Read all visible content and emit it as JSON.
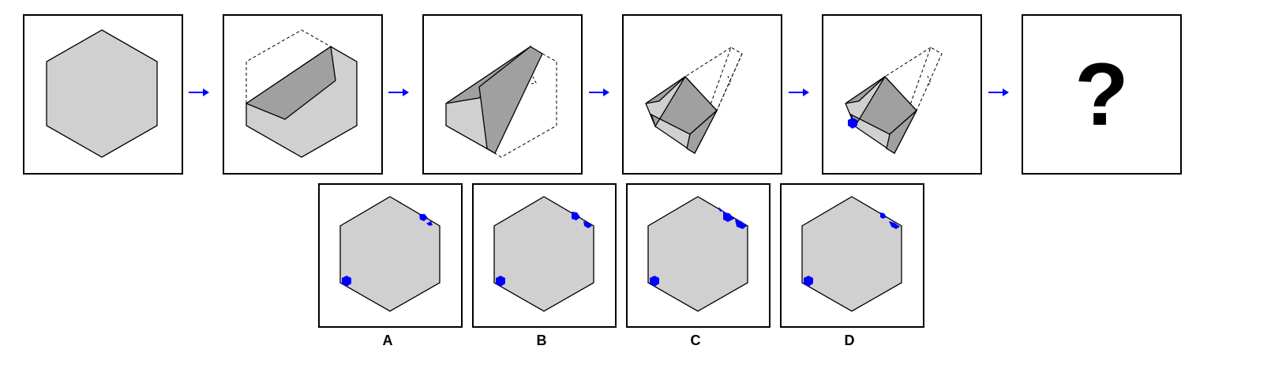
{
  "puzzle": {
    "steps": [
      "unfolded-hexagon",
      "fold-1",
      "fold-2",
      "fold-3",
      "punched-hole"
    ],
    "question_mark": "?"
  },
  "options": [
    {
      "label": "A"
    },
    {
      "label": "B"
    },
    {
      "label": "C"
    },
    {
      "label": "D"
    }
  ],
  "colors": {
    "paper": "#d0d0d0",
    "paper_folded": "#a0a0a0",
    "outline": "#000000",
    "hole": "#0000ff",
    "arrow": "#0000ff"
  }
}
